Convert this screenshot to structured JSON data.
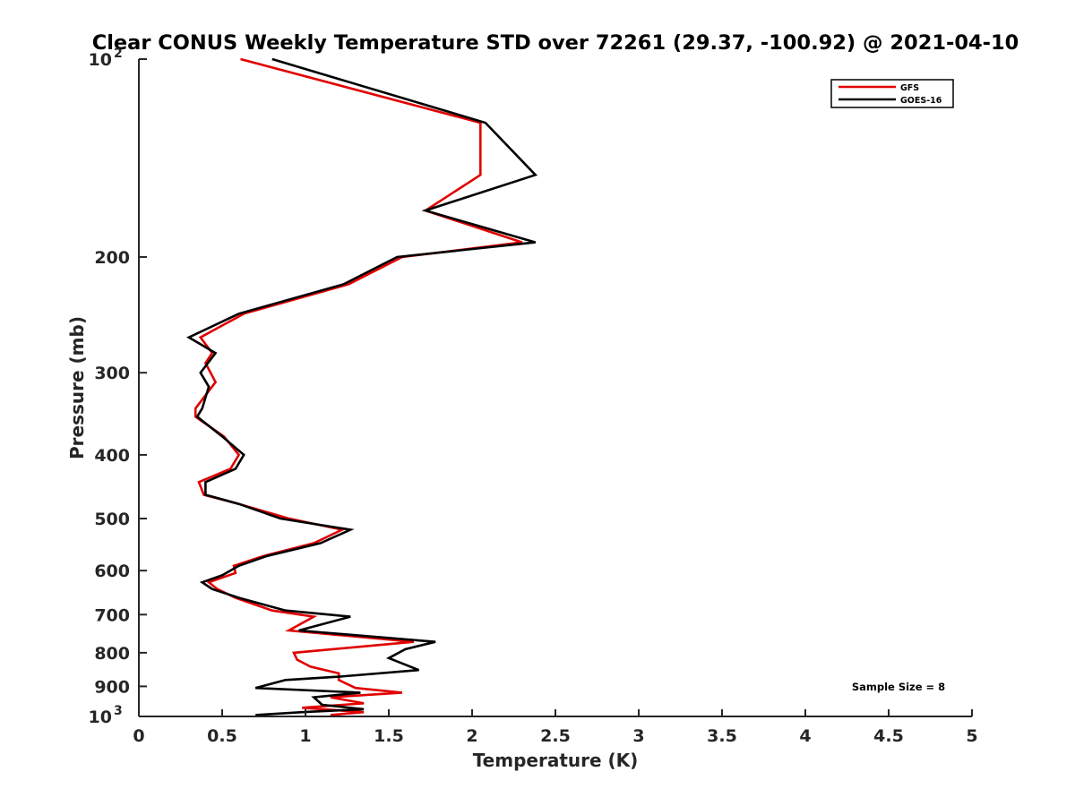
{
  "chart_data": {
    "type": "line",
    "title": "Clear CONUS Weekly Temperature STD over 72261 (29.37, -100.92) @ 2021-04-10",
    "xlabel": "Temperature (K)",
    "ylabel": "Pressure (mb)",
    "xlim": [
      0,
      5
    ],
    "ylim": [
      100,
      1000
    ],
    "y_scale": "log",
    "y_reversed": true,
    "x_ticks": [
      {
        "value": 0,
        "label": "0"
      },
      {
        "value": 0.5,
        "label": "0.5"
      },
      {
        "value": 1,
        "label": "1"
      },
      {
        "value": 1.5,
        "label": "1.5"
      },
      {
        "value": 2,
        "label": "2"
      },
      {
        "value": 2.5,
        "label": "2.5"
      },
      {
        "value": 3,
        "label": "3"
      },
      {
        "value": 3.5,
        "label": "3.5"
      },
      {
        "value": 4,
        "label": "4"
      },
      {
        "value": 4.5,
        "label": "4.5"
      },
      {
        "value": 5,
        "label": "5"
      }
    ],
    "y_ticks": [
      {
        "value": 100,
        "label": "10",
        "sup": "2"
      },
      {
        "value": 200,
        "label": "200"
      },
      {
        "value": 300,
        "label": "300"
      },
      {
        "value": 400,
        "label": "400"
      },
      {
        "value": 500,
        "label": "500"
      },
      {
        "value": 600,
        "label": "600"
      },
      {
        "value": 700,
        "label": "700"
      },
      {
        "value": 800,
        "label": "800"
      },
      {
        "value": 900,
        "label": "900"
      },
      {
        "value": 1000,
        "label": "10",
        "sup": "3"
      }
    ],
    "grid": false,
    "legend_position": "top-right",
    "annotation": "Sample Size = 8",
    "series": [
      {
        "name": "GFS",
        "color": "#e00000",
        "points": [
          [
            0.61,
            100
          ],
          [
            2.05,
            125
          ],
          [
            2.05,
            150
          ],
          [
            1.72,
            170
          ],
          [
            2.3,
            190
          ],
          [
            1.58,
            200
          ],
          [
            1.26,
            220
          ],
          [
            0.63,
            244
          ],
          [
            0.37,
            265
          ],
          [
            0.44,
            280
          ],
          [
            0.4,
            290
          ],
          [
            0.46,
            310
          ],
          [
            0.34,
            340
          ],
          [
            0.34,
            350
          ],
          [
            0.51,
            375
          ],
          [
            0.6,
            400
          ],
          [
            0.55,
            420
          ],
          [
            0.36,
            440
          ],
          [
            0.39,
            460
          ],
          [
            0.6,
            475
          ],
          [
            0.9,
            500
          ],
          [
            1.22,
            520
          ],
          [
            1.05,
            545
          ],
          [
            0.75,
            570
          ],
          [
            0.57,
            590
          ],
          [
            0.58,
            605
          ],
          [
            0.42,
            625
          ],
          [
            0.47,
            640
          ],
          [
            0.58,
            660
          ],
          [
            0.8,
            690
          ],
          [
            1.05,
            705
          ],
          [
            0.9,
            740
          ],
          [
            1.65,
            770
          ],
          [
            0.93,
            800
          ],
          [
            0.95,
            820
          ],
          [
            1.03,
            840
          ],
          [
            1.2,
            860
          ],
          [
            1.2,
            880
          ],
          [
            1.3,
            905
          ],
          [
            1.58,
            920
          ],
          [
            1.15,
            935
          ],
          [
            1.35,
            955
          ],
          [
            0.98,
            970
          ],
          [
            1.35,
            985
          ],
          [
            1.15,
            995
          ]
        ]
      },
      {
        "name": "GOES-16",
        "color": "#000000",
        "points": [
          [
            0.8,
            100
          ],
          [
            2.08,
            125
          ],
          [
            2.38,
            150
          ],
          [
            1.72,
            170
          ],
          [
            2.38,
            190
          ],
          [
            1.55,
            200
          ],
          [
            1.23,
            220
          ],
          [
            0.6,
            244
          ],
          [
            0.3,
            265
          ],
          [
            0.46,
            280
          ],
          [
            0.37,
            300
          ],
          [
            0.42,
            315
          ],
          [
            0.38,
            340
          ],
          [
            0.35,
            350
          ],
          [
            0.5,
            375
          ],
          [
            0.63,
            400
          ],
          [
            0.58,
            420
          ],
          [
            0.4,
            440
          ],
          [
            0.4,
            460
          ],
          [
            0.6,
            475
          ],
          [
            0.85,
            500
          ],
          [
            1.27,
            520
          ],
          [
            1.09,
            545
          ],
          [
            0.77,
            570
          ],
          [
            0.6,
            590
          ],
          [
            0.5,
            610
          ],
          [
            0.38,
            625
          ],
          [
            0.44,
            640
          ],
          [
            0.6,
            660
          ],
          [
            0.88,
            690
          ],
          [
            1.27,
            705
          ],
          [
            0.96,
            740
          ],
          [
            1.78,
            770
          ],
          [
            1.6,
            790
          ],
          [
            1.5,
            815
          ],
          [
            1.68,
            850
          ],
          [
            1.2,
            870
          ],
          [
            0.88,
            880
          ],
          [
            0.7,
            905
          ],
          [
            1.33,
            920
          ],
          [
            1.05,
            935
          ],
          [
            1.1,
            960
          ],
          [
            1.35,
            975
          ],
          [
            0.98,
            985
          ],
          [
            0.7,
            995
          ]
        ]
      }
    ]
  }
}
